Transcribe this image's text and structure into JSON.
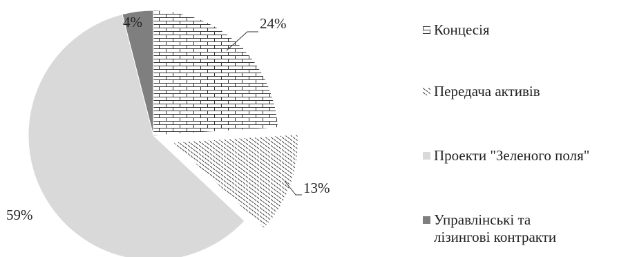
{
  "chart_data": {
    "type": "pie",
    "title": "",
    "start_angle_deg": 0,
    "direction": "clockwise",
    "slices": [
      {
        "label": "Концесія",
        "value": 24,
        "value_label": "24%",
        "color": "#ffffff",
        "pattern": "brick",
        "exploded": false
      },
      {
        "label": "Передача активів",
        "value": 13,
        "value_label": "13%",
        "color": "#ffffff",
        "pattern": "diagonal-dashes",
        "exploded": true
      },
      {
        "label": "Проекти \"Зеленого поля\"",
        "value": 59,
        "value_label": "59%",
        "color": "#d9d9d9",
        "pattern": "solid",
        "exploded": false
      },
      {
        "label": "Управлінські та\nлізингові контракти",
        "value": 4,
        "value_label": "4%",
        "color": "#7f7f7f",
        "pattern": "solid",
        "exploded": false
      }
    ],
    "legend_position": "right"
  }
}
